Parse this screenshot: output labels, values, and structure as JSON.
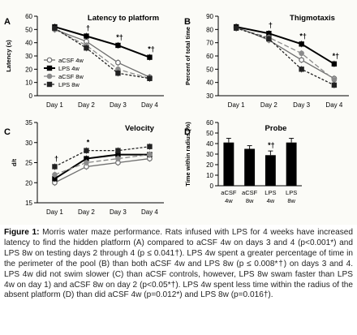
{
  "figure": {
    "caption_label": "Figure 1:",
    "caption_text": " Morris water maze performance. Rats infused with LPS for 4 weeks have increased latency to find the hidden platform (A) compared to aCSF 4w on days 3 and 4 (p<0.001*) and LPS 8w on testing days 2 through 4 (p ≤ 0.041†). LPS 4w spent a greater percentage of time in the perimeter of the pool (B) than both aCSF 4w and LPS 8w (p ≤ 0.008*†) on days 3 and 4. LPS 4w did not swim slower (C) than aCSF controls, however, LPS 8w swam faster than LPS 4w on day 1) and aCSF 8w on day 2 (p<0.05*†). LPS 4w spent less time within the radius of the absent platform (D) than did aCSF 4w (p=0.012*) and LPS 8w (p=0.016†)."
  },
  "series_styles": [
    {
      "name": "aCSF 4w",
      "color": "#6e6e6e",
      "dash": "none",
      "marker": "circle-open"
    },
    {
      "name": "LPS 4w",
      "color": "#000000",
      "dash": "none",
      "marker": "square"
    },
    {
      "name": "aCSF 8w",
      "color": "#8a8a8a",
      "dash": "6,3",
      "marker": "circle"
    },
    {
      "name": "LPS 8w",
      "color": "#222222",
      "dash": "3,2",
      "marker": "square"
    }
  ],
  "chart_data": [
    {
      "panel": "A",
      "type": "line",
      "title": "Latency to platform",
      "xlabel": "",
      "ylabel": "Latency (s)",
      "categories": [
        "Day 1",
        "Day 2",
        "Day 3",
        "Day 4"
      ],
      "ylim": [
        0,
        60
      ],
      "yticks": [
        "0",
        "10",
        "20",
        "30",
        "40",
        "50",
        "60"
      ],
      "series": [
        {
          "name": "aCSF 4w",
          "values": [
            50,
            41,
            25,
            14
          ]
        },
        {
          "name": "LPS 4w",
          "values": [
            52,
            45,
            38,
            29
          ]
        },
        {
          "name": "aCSF 8w",
          "values": [
            50,
            38,
            20,
            13
          ]
        },
        {
          "name": "LPS 8w",
          "values": [
            51,
            36,
            17,
            13
          ]
        }
      ],
      "annotations": [
        {
          "x": "Day 2",
          "text": "†"
        },
        {
          "x": "Day 3",
          "text": "*†"
        },
        {
          "x": "Day 4",
          "text": "*†"
        }
      ],
      "legend": "bottom-left"
    },
    {
      "panel": "B",
      "type": "line",
      "title": "Thigmotaxis",
      "xlabel": "",
      "ylabel": "Percent of total time",
      "categories": [
        "Day 1",
        "Day 2",
        "Day 3",
        "Day 4"
      ],
      "ylim": [
        30,
        90
      ],
      "yticks": [
        "30",
        "40",
        "50",
        "60",
        "70",
        "80",
        "90"
      ],
      "series": [
        {
          "name": "aCSF 4w",
          "values": [
            82,
            72,
            57,
            43
          ]
        },
        {
          "name": "LPS 4w",
          "values": [
            82,
            77,
            69,
            54
          ]
        },
        {
          "name": "aCSF 8w",
          "values": [
            81,
            74,
            62,
            42
          ]
        },
        {
          "name": "LPS 8w",
          "values": [
            81,
            73,
            50,
            38
          ]
        }
      ],
      "annotations": [
        {
          "x": "Day 2",
          "text": "†"
        },
        {
          "x": "Day 3",
          "text": "*†"
        },
        {
          "x": "Day 4",
          "text": "*†"
        }
      ]
    },
    {
      "panel": "C",
      "type": "line",
      "title": "Velocity",
      "xlabel": "",
      "ylabel": "d/t",
      "categories": [
        "Day 1",
        "Day 2",
        "Day 3",
        "Day 4"
      ],
      "ylim": [
        15,
        35
      ],
      "yticks": [
        "15",
        "20",
        "25",
        "30",
        "35"
      ],
      "series": [
        {
          "name": "aCSF 4w",
          "values": [
            20,
            24,
            25,
            26
          ]
        },
        {
          "name": "LPS 4w",
          "values": [
            21,
            26,
            27,
            27
          ]
        },
        {
          "name": "aCSF 8w",
          "values": [
            22,
            25,
            26,
            27
          ]
        },
        {
          "name": "LPS 8w",
          "values": [
            24,
            28,
            28,
            29
          ]
        }
      ],
      "annotations": [
        {
          "x": "Day 1",
          "text": "†"
        },
        {
          "x": "Day 2",
          "text": "*"
        }
      ]
    },
    {
      "panel": "D",
      "type": "bar",
      "title": "Probe",
      "xlabel": "",
      "ylabel": "Time within radius (%)",
      "categories": [
        "aCSF 4w",
        "aCSF 8w",
        "LPS 4w",
        "LPS 8w"
      ],
      "values": [
        41,
        35,
        29,
        41
      ],
      "errors": [
        4,
        3,
        4,
        4
      ],
      "ylim": [
        0,
        60
      ],
      "yticks": [
        "0",
        "10",
        "20",
        "30",
        "40",
        "50",
        "60"
      ],
      "annotations": [
        {
          "x": "LPS 4w",
          "text": "*†"
        }
      ]
    }
  ]
}
